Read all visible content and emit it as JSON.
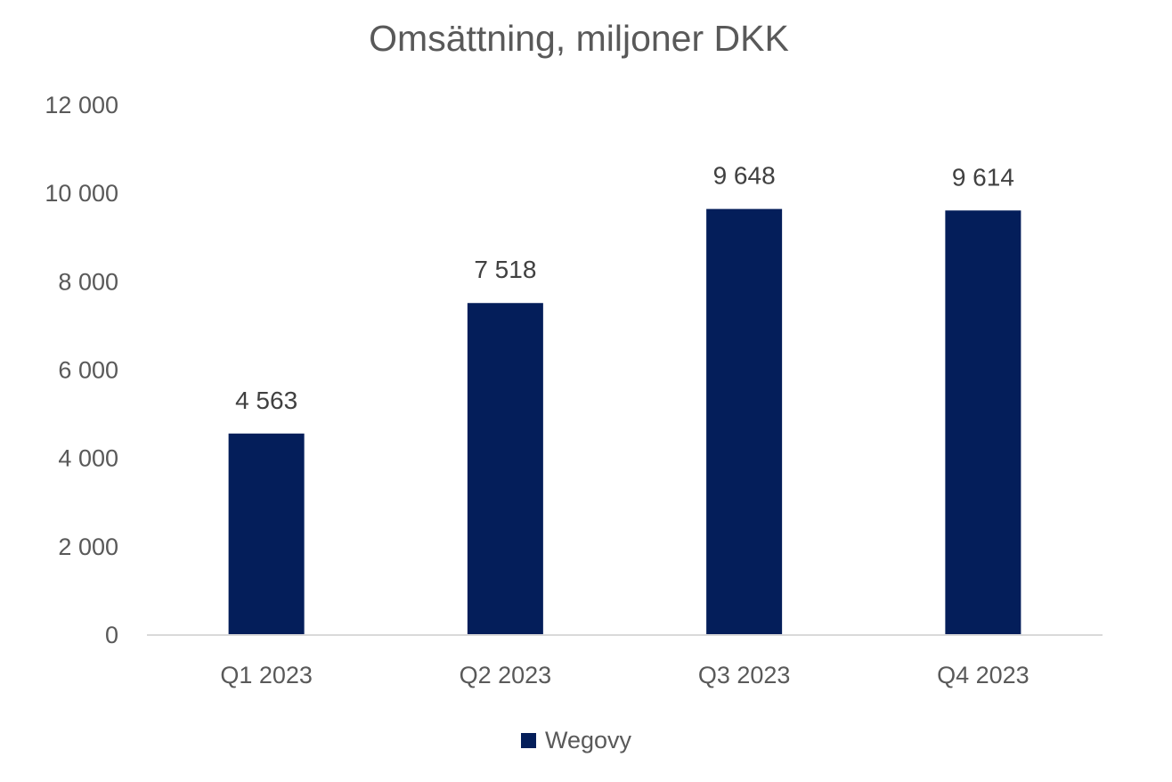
{
  "chart_data": {
    "type": "bar",
    "title": "Omsättning, miljoner DKK",
    "xlabel": "",
    "ylabel": "",
    "categories": [
      "Q1 2023",
      "Q2 2023",
      "Q3 2023",
      "Q4 2023"
    ],
    "series": [
      {
        "name": "Wegovy",
        "values": [
          4563,
          7518,
          9648,
          9614
        ],
        "value_labels": [
          "4 563",
          "7 518",
          "9 648",
          "9 614"
        ],
        "color": "#041E5A"
      }
    ],
    "ylim": [
      0,
      12000
    ],
    "y_ticks": [
      0,
      2000,
      4000,
      6000,
      8000,
      10000,
      12000
    ],
    "y_tick_labels": [
      "0",
      "2 000",
      "4 000",
      "6 000",
      "8 000",
      "10 000",
      "12 000"
    ],
    "grid": false,
    "legend_position": "bottom",
    "data_labels": true
  },
  "colors": {
    "bar": "#041E5A",
    "text": "#595959",
    "value_label": "#404040",
    "axis_line": "#D9D9D9"
  }
}
